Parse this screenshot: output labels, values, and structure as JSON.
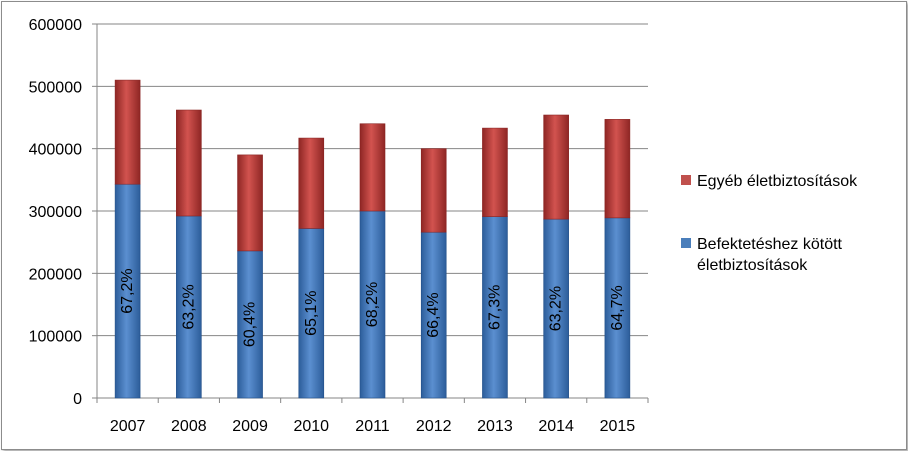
{
  "chart_data": {
    "type": "bar",
    "stacked": true,
    "categories": [
      "2007",
      "2008",
      "2009",
      "2010",
      "2011",
      "2012",
      "2013",
      "2014",
      "2015"
    ],
    "series": [
      {
        "name": "Befektetéshez kötött életbiztosítások",
        "color": "#4a7ebb",
        "values": [
          343000,
          292000,
          236000,
          272000,
          300000,
          266000,
          291000,
          287000,
          289000
        ],
        "data_labels": [
          "67,2%",
          "63,2%",
          "60,4%",
          "65,1%",
          "68,2%",
          "66,4%",
          "67,3%",
          "63,2%",
          "64,7%"
        ]
      },
      {
        "name": "Egyéb életbiztosítások",
        "color": "#c0504d",
        "values": [
          167000,
          170000,
          154000,
          145000,
          140000,
          134000,
          142000,
          167000,
          158000
        ]
      }
    ],
    "ylim": [
      0,
      600000
    ],
    "yticks": [
      "0",
      "100000",
      "200000",
      "300000",
      "400000",
      "500000",
      "600000"
    ],
    "grid": true,
    "legend_position": "right"
  },
  "legend": {
    "items": [
      {
        "label_lines": [
          "Egyéb életbiztosítások"
        ],
        "color": "#c0504d"
      },
      {
        "label_lines": [
          "Befektetéshez kötött",
          "életbiztosítások"
        ],
        "color": "#4a7ebb"
      }
    ]
  }
}
